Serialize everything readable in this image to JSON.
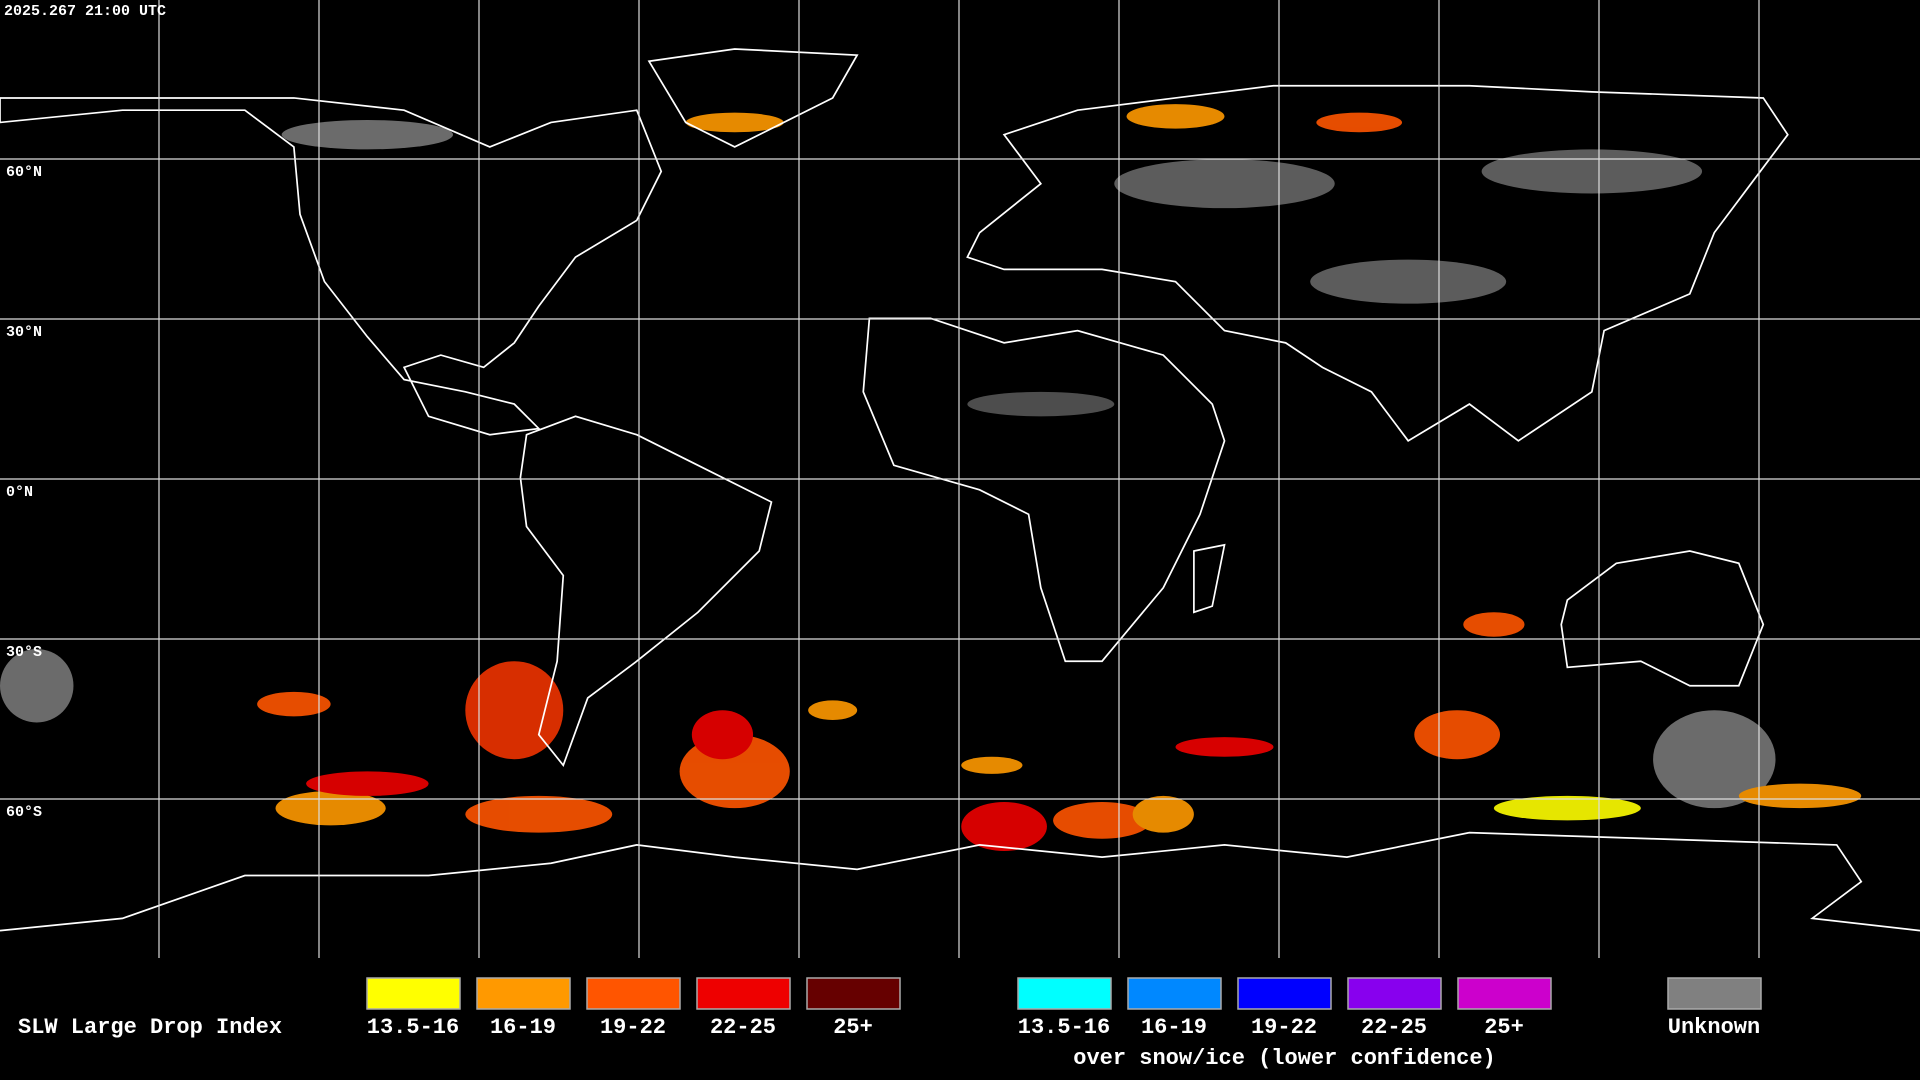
{
  "header": {
    "timestamp": "2025.267 21:00 UTC"
  },
  "latitude_labels": [
    "60°N",
    "30°N",
    "0°N",
    "30°S",
    "60°S"
  ],
  "legend": {
    "title": "SLW Large Drop Index",
    "groups": [
      {
        "items": [
          {
            "label": "13.5-16",
            "color": "#ffff00"
          },
          {
            "label": "16-19",
            "color": "#ff9900"
          },
          {
            "label": "19-22",
            "color": "#ff5500"
          },
          {
            "label": "22-25",
            "color": "#ee0000"
          },
          {
            "label": "25+",
            "color": "#660000"
          }
        ]
      },
      {
        "items": [
          {
            "label": "13.5-16",
            "color": "#00ffff"
          },
          {
            "label": "16-19",
            "color": "#0088ff"
          },
          {
            "label": "19-22",
            "color": "#0000ff"
          },
          {
            "label": "22-25",
            "color": "#8800ee"
          },
          {
            "label": "25+",
            "color": "#cc00cc"
          }
        ],
        "note": "over snow/ice (lower confidence)"
      },
      {
        "items": [
          {
            "label": "Unknown",
            "color": "#808080"
          }
        ]
      }
    ]
  }
}
